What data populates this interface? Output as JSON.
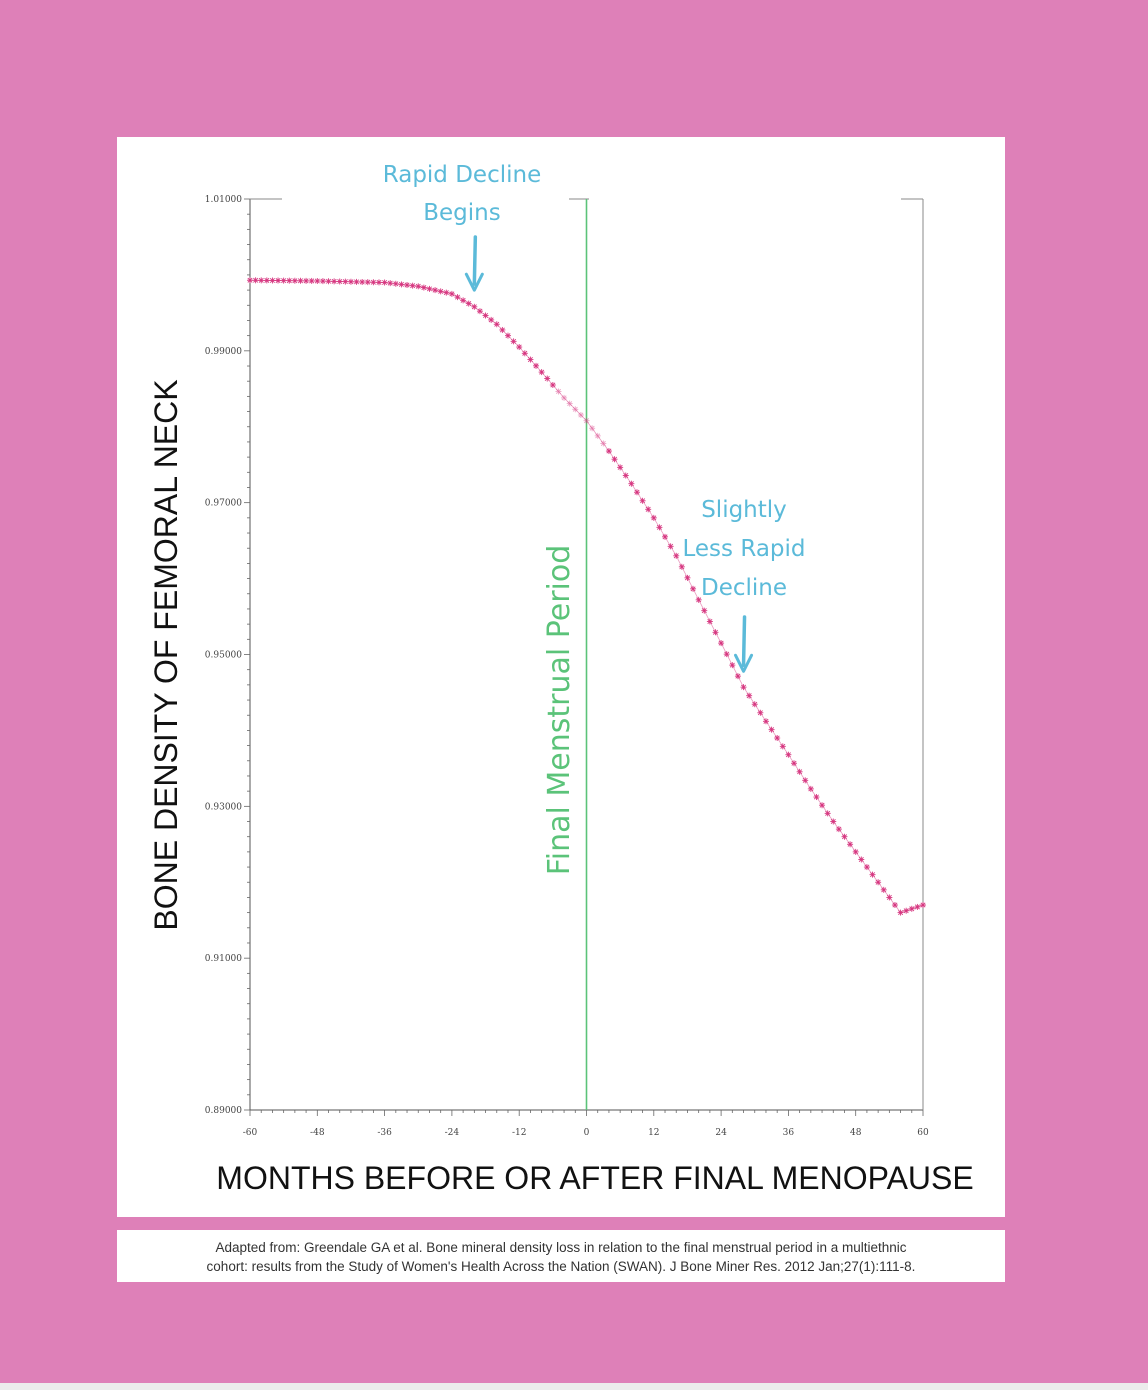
{
  "chart_data": {
    "type": "line",
    "xlabel": "MONTHS BEFORE OR AFTER FINAL MENOPAUSE",
    "ylabel": "BONE DENSITY OF FEMORAL NECK",
    "xlim": [
      -60,
      60
    ],
    "ylim": [
      0.89,
      1.01
    ],
    "x_ticks": [
      -60,
      -48,
      -36,
      -24,
      -12,
      0,
      12,
      24,
      36,
      48,
      60
    ],
    "x_tick_labels": [
      "-60",
      "-48",
      "-36",
      "-24",
      "-12",
      "0",
      "12",
      "24",
      "36",
      "48",
      "60"
    ],
    "y_ticks": [
      0.89,
      0.91,
      0.93,
      0.95,
      0.97,
      0.99,
      1.01
    ],
    "y_tick_labels": [
      "0.89000",
      "0.91000",
      "0.93000",
      "0.95000",
      "0.97000",
      "0.99000",
      "1.01000"
    ],
    "grid": false,
    "series": [
      {
        "color": "#d6357f",
        "marker": "asterisk",
        "x": [
          -60,
          -48,
          -36,
          -30,
          -24,
          -20,
          -16,
          -12,
          -8,
          -4,
          0,
          4,
          8,
          12,
          16,
          20,
          24,
          28,
          32,
          36,
          40,
          44,
          48,
          52,
          56,
          60
        ],
        "y": [
          0.9993,
          0.9992,
          0.999,
          0.9985,
          0.9975,
          0.9958,
          0.9935,
          0.9905,
          0.9872,
          0.9838,
          0.9808,
          0.9768,
          0.9725,
          0.968,
          0.963,
          0.9572,
          0.9515,
          0.9457,
          0.9412,
          0.9368,
          0.9323,
          0.928,
          0.924,
          0.92,
          0.916,
          0.917
        ]
      }
    ],
    "reference_line": {
      "x": 0,
      "label": "Final Menstrual Period",
      "color": "#5bc379"
    },
    "annotations": [
      {
        "lines": [
          "Rapid Decline",
          "Begins"
        ],
        "x": -20,
        "y": 0.9972,
        "color": "#5bbad9"
      },
      {
        "lines": [
          "Slightly",
          "Less Rapid",
          "Decline"
        ],
        "x": 28,
        "y": 0.947,
        "color": "#5bbad9"
      }
    ]
  },
  "caption": {
    "line1": "Adapted from: Greendale GA et al. Bone mineral density loss in relation to the final menstrual period in a multiethnic",
    "line2": "cohort: results from the Study of Women's Health Across the Nation (SWAN). J Bone Miner Res. 2012 Jan;27(1):111-8."
  }
}
